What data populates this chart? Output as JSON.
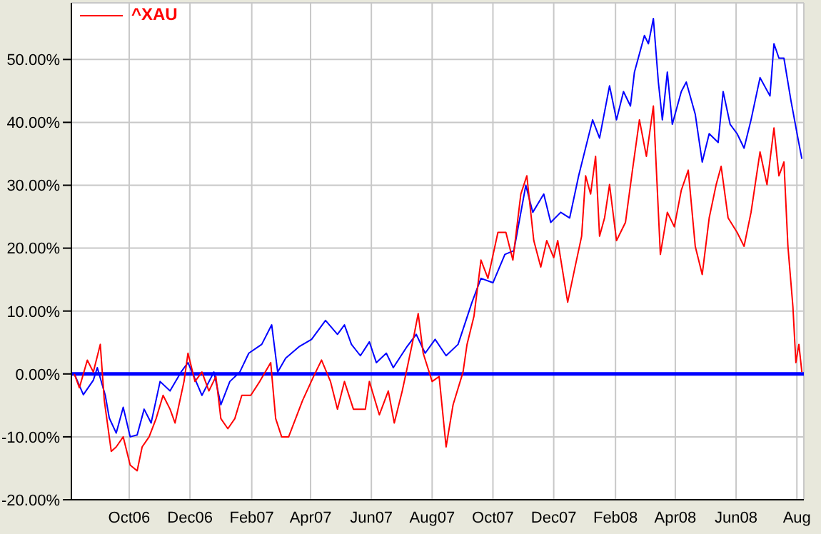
{
  "chart_data": {
    "type": "line",
    "xlim": [
      "2006-08-04",
      "2008-08-08"
    ],
    "ylim": [
      -20,
      59
    ],
    "xticks": [
      {
        "value": "2006-10-01",
        "label": "Oct06"
      },
      {
        "value": "2006-12-01",
        "label": "Dec06"
      },
      {
        "value": "2007-02-01",
        "label": "Feb07"
      },
      {
        "value": "2007-04-01",
        "label": "Apr07"
      },
      {
        "value": "2007-06-01",
        "label": "Jun07"
      },
      {
        "value": "2007-08-01",
        "label": "Aug07"
      },
      {
        "value": "2007-10-01",
        "label": "Oct07"
      },
      {
        "value": "2007-12-01",
        "label": "Dec07"
      },
      {
        "value": "2008-02-01",
        "label": "Feb08"
      },
      {
        "value": "2008-04-01",
        "label": "Apr08"
      },
      {
        "value": "2008-06-01",
        "label": "Jun08"
      },
      {
        "value": "2008-08-01",
        "label": "Aug"
      }
    ],
    "yticks": [
      {
        "value": -20,
        "label": "-20.00%"
      },
      {
        "value": -10,
        "label": "-10.00%"
      },
      {
        "value": 0,
        "label": "0.00%"
      },
      {
        "value": 10,
        "label": "10.00%"
      },
      {
        "value": 20,
        "label": "20.00%"
      },
      {
        "value": 30,
        "label": "30.00%"
      },
      {
        "value": 40,
        "label": "40.00%"
      },
      {
        "value": 50,
        "label": "50.00%"
      }
    ],
    "grid": true,
    "legend": "top left",
    "marker": "none",
    "line_style": "solid",
    "ref_lines": [
      {
        "axis": "y",
        "value": 0,
        "color": "#0000ff"
      }
    ],
    "series": [
      {
        "color": "#0000ff",
        "x": [
          "2006-08-07",
          "2006-08-16",
          "2006-08-26",
          "2006-08-30",
          "2006-09-07",
          "2006-09-11",
          "2006-09-18",
          "2006-09-25",
          "2006-10-02",
          "2006-10-09",
          "2006-10-16",
          "2006-10-23",
          "2006-11-01",
          "2006-11-11",
          "2006-11-22",
          "2006-11-29",
          "2006-12-13",
          "2006-12-25",
          "2007-01-01",
          "2007-01-10",
          "2007-01-20",
          "2007-01-29",
          "2007-02-11",
          "2007-02-21",
          "2007-02-27",
          "2007-03-07",
          "2007-03-21",
          "2007-04-02",
          "2007-04-16",
          "2007-04-28",
          "2007-05-05",
          "2007-05-12",
          "2007-05-21",
          "2007-05-30",
          "2007-06-06",
          "2007-06-16",
          "2007-06-23",
          "2007-07-07",
          "2007-07-16",
          "2007-07-25",
          "2007-08-04",
          "2007-08-15",
          "2007-08-27",
          "2007-09-10",
          "2007-09-19",
          "2007-10-01",
          "2007-10-13",
          "2007-10-22",
          "2007-11-03",
          "2007-11-10",
          "2007-11-21",
          "2007-11-28",
          "2007-12-08",
          "2007-12-17",
          "2007-12-26",
          "2008-01-09",
          "2008-01-16",
          "2008-01-26",
          "2008-02-02",
          "2008-02-09",
          "2008-02-16",
          "2008-02-20",
          "2008-03-01",
          "2008-03-05",
          "2008-03-10",
          "2008-03-15",
          "2008-03-19",
          "2008-03-24",
          "2008-03-29",
          "2008-04-07",
          "2008-04-12",
          "2008-04-21",
          "2008-04-28",
          "2008-05-05",
          "2008-05-14",
          "2008-05-19",
          "2008-05-26",
          "2008-06-02",
          "2008-06-09",
          "2008-06-16",
          "2008-06-25",
          "2008-07-05",
          "2008-07-09",
          "2008-07-14",
          "2008-07-19",
          "2008-07-26",
          "2008-08-02",
          "2008-08-06"
        ],
        "values": [
          0,
          -3.3,
          -1,
          1,
          -3.4,
          -7,
          -9.4,
          -5.3,
          -10,
          -9.7,
          -5.6,
          -7.8,
          -1.2,
          -2.7,
          0.3,
          1.8,
          -3.4,
          0.3,
          -4.9,
          -1.2,
          0.3,
          3.3,
          4.7,
          7.8,
          0.3,
          2.5,
          4.4,
          5.5,
          8.5,
          6.3,
          7.8,
          4.7,
          2.9,
          5.1,
          1.8,
          3.3,
          1,
          4.4,
          6.3,
          3.3,
          5.5,
          2.9,
          4.7,
          11.4,
          15.2,
          14.5,
          19,
          19.6,
          30,
          25.7,
          28.6,
          24.1,
          25.7,
          24.8,
          31.5,
          40.4,
          37.5,
          45.8,
          40.4,
          44.9,
          42.6,
          48,
          53.8,
          52.5,
          56.5,
          46.4,
          40.4,
          48,
          39.7,
          44.9,
          46.4,
          41.3,
          33.7,
          38.2,
          36.8,
          44.9,
          39.7,
          38.2,
          35.9,
          40.4,
          47.1,
          44.2,
          52.5,
          50.2,
          50.2,
          43.5,
          37.5,
          34.2
        ]
      },
      {
        "name": "^XAU",
        "color": "#ff0000",
        "x": [
          "2006-08-07",
          "2006-08-12",
          "2006-08-20",
          "2006-08-26",
          "2006-09-02",
          "2006-09-06",
          "2006-09-13",
          "2006-09-18",
          "2006-09-25",
          "2006-10-02",
          "2006-10-09",
          "2006-10-14",
          "2006-10-21",
          "2006-10-28",
          "2006-11-04",
          "2006-11-11",
          "2006-11-16",
          "2006-11-25",
          "2006-11-29",
          "2006-12-06",
          "2006-12-13",
          "2006-12-20",
          "2006-12-27",
          "2007-01-01",
          "2007-01-08",
          "2007-01-15",
          "2007-01-22",
          "2007-01-31",
          "2007-02-09",
          "2007-02-20",
          "2007-02-25",
          "2007-03-03",
          "2007-03-10",
          "2007-03-24",
          "2007-04-04",
          "2007-04-12",
          "2007-04-21",
          "2007-04-28",
          "2007-05-05",
          "2007-05-14",
          "2007-05-26",
          "2007-05-30",
          "2007-06-09",
          "2007-06-18",
          "2007-06-24",
          "2007-07-02",
          "2007-07-07",
          "2007-07-14",
          "2007-07-18",
          "2007-07-23",
          "2007-08-01",
          "2007-08-08",
          "2007-08-15",
          "2007-08-22",
          "2007-09-01",
          "2007-09-05",
          "2007-09-12",
          "2007-09-19",
          "2007-09-26",
          "2007-10-06",
          "2007-10-14",
          "2007-10-21",
          "2007-10-29",
          "2007-11-04",
          "2007-11-11",
          "2007-11-18",
          "2007-11-24",
          "2007-12-01",
          "2007-12-05",
          "2007-12-15",
          "2007-12-22",
          "2007-12-29",
          "2008-01-02",
          "2008-01-07",
          "2008-01-12",
          "2008-01-16",
          "2008-01-21",
          "2008-01-26",
          "2008-02-02",
          "2008-02-11",
          "2008-02-18",
          "2008-02-25",
          "2008-03-03",
          "2008-03-10",
          "2008-03-17",
          "2008-03-24",
          "2008-03-31",
          "2008-04-07",
          "2008-04-14",
          "2008-04-21",
          "2008-04-28",
          "2008-05-05",
          "2008-05-12",
          "2008-05-17",
          "2008-05-24",
          "2008-06-02",
          "2008-06-09",
          "2008-06-16",
          "2008-06-25",
          "2008-07-02",
          "2008-07-09",
          "2008-07-14",
          "2008-07-19",
          "2008-07-23",
          "2008-07-28",
          "2008-07-31",
          "2008-08-03",
          "2008-08-06"
        ],
        "values": [
          0,
          -2.2,
          2.2,
          0.3,
          4.7,
          -4.2,
          -12.3,
          -11.6,
          -10,
          -14.5,
          -15.4,
          -11.6,
          -10,
          -7.1,
          -3.4,
          -5.6,
          -7.8,
          -1.2,
          3.3,
          -1.2,
          0.3,
          -2.7,
          -0.4,
          -7.1,
          -8.7,
          -7.1,
          -3.4,
          -3.4,
          -1.2,
          1.8,
          -7.1,
          -10,
          -10,
          -4.2,
          -0.4,
          2.2,
          -1.2,
          -5.6,
          -1.2,
          -5.6,
          -5.6,
          -1.2,
          -6.5,
          -2.7,
          -7.8,
          -2.7,
          1,
          6.3,
          9.6,
          3.3,
          -1.2,
          -0.4,
          -11.6,
          -4.9,
          0.3,
          4.7,
          9.2,
          18.1,
          15.2,
          22.5,
          22.5,
          18.1,
          28.6,
          31.5,
          21.2,
          17,
          21.2,
          18.5,
          21.2,
          11.4,
          16.7,
          21.9,
          31.5,
          28.6,
          34.6,
          21.9,
          24.8,
          30.1,
          21.2,
          24.1,
          32.4,
          40.4,
          34.6,
          42.6,
          19,
          25.7,
          23.4,
          29.2,
          32.4,
          20.3,
          15.8,
          24.8,
          30.1,
          33,
          24.8,
          22.5,
          20.3,
          25.7,
          35.3,
          30.1,
          39.1,
          31.5,
          33.7,
          20.3,
          10.7,
          1.8,
          4.7,
          0.3
        ]
      }
    ]
  }
}
